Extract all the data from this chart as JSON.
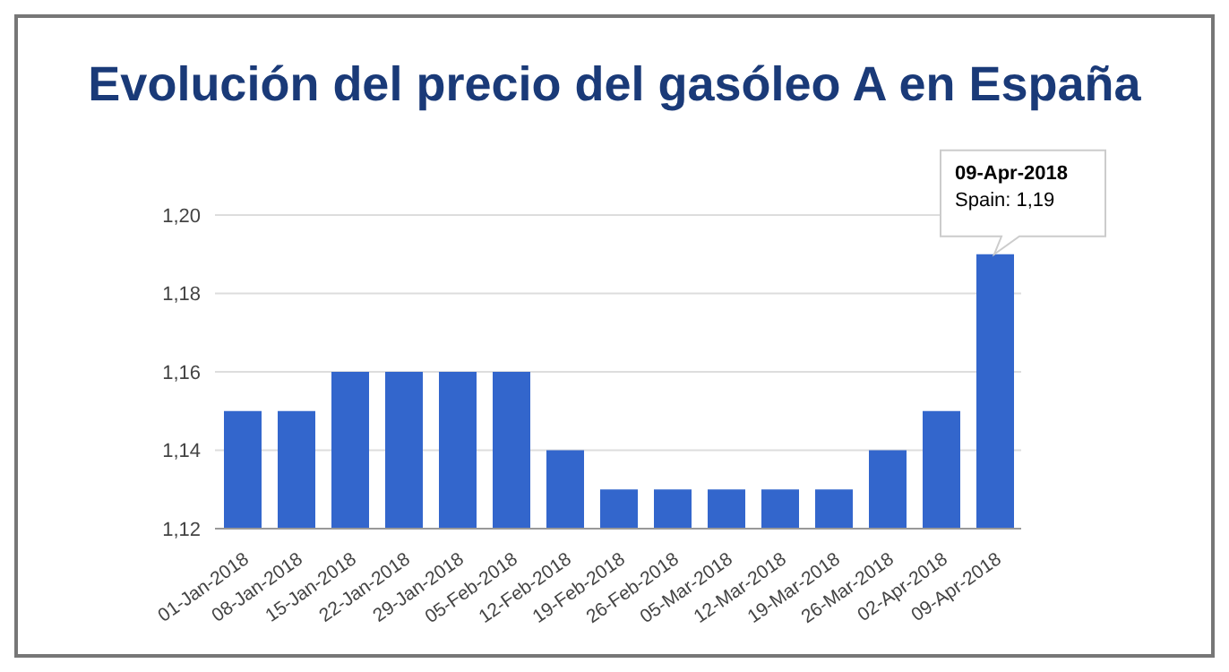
{
  "chart_data": {
    "type": "bar",
    "title": "Evolución del precio del gasóleo A en España",
    "categories": [
      "01-Jan-2018",
      "08-Jan-2018",
      "15-Jan-2018",
      "22-Jan-2018",
      "29-Jan-2018",
      "05-Feb-2018",
      "12-Feb-2018",
      "19-Feb-2018",
      "26-Feb-2018",
      "05-Mar-2018",
      "12-Mar-2018",
      "19-Mar-2018",
      "26-Mar-2018",
      "02-Apr-2018",
      "09-Apr-2018"
    ],
    "values": [
      1.15,
      1.15,
      1.16,
      1.16,
      1.16,
      1.16,
      1.14,
      1.13,
      1.13,
      1.13,
      1.13,
      1.13,
      1.14,
      1.15,
      1.19
    ],
    "color": "#3366cc",
    "ylim": [
      1.12,
      1.2
    ],
    "yticks": [
      {
        "value": 1.12,
        "label": "1,12"
      },
      {
        "value": 1.14,
        "label": "1,14"
      },
      {
        "value": 1.16,
        "label": "1,16"
      },
      {
        "value": 1.18,
        "label": "1,18"
      },
      {
        "value": 1.2,
        "label": "1,20"
      }
    ],
    "grid": "y",
    "annotations": [
      "09-Apr-2018",
      "Spain: 1,19"
    ]
  }
}
